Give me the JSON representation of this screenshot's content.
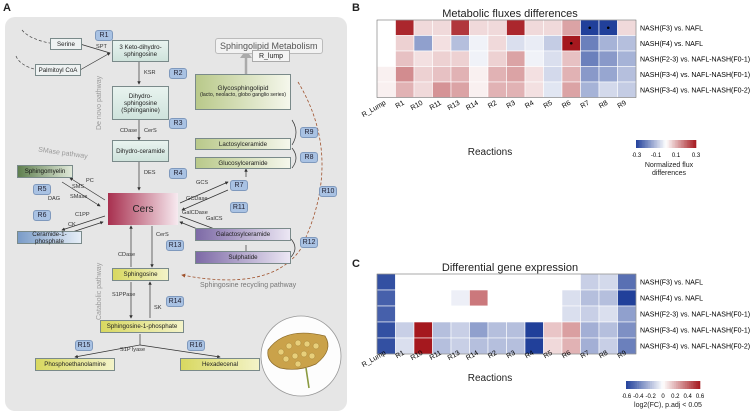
{
  "panel_a": {
    "letter": "A",
    "title": "Sphingolipid Metabolism",
    "pathways": {
      "de_novo": "De novo pathway",
      "smase": "SMase pathway",
      "catabolic": "Catabolic pathway",
      "recycling": "Sphingosine recycling pathway"
    },
    "nodes": {
      "serine": "Serine",
      "palmitoyl": "Palmitoyl CoA",
      "keto": "3 Keto-dihydro-sphingosine",
      "dihydrosph": "Dihydro-sphingosine (Sphinganine)",
      "dihydrocer": "Dihydro-ceramide",
      "sphingomyelin": "Sphingomyelin",
      "cer1p": "Ceramide-1-phosphate",
      "cers": "Cers",
      "sphingosine": "Sphingosine",
      "s1p": "Sphingosine-1-phosphate",
      "pea": "Phosphoethanolamine",
      "hexadecenal": "Hexadecenal",
      "glyco": "Glycosphingolipid",
      "glyco_sub": "(lacto, neolacto, globo ganglio series)",
      "lactosyl": "Lactosylceramide",
      "glucosyl": "Glucosylceramide",
      "galactosyl": "Galactosylceramide",
      "sulphatide": "Sulphatide",
      "r_lump": "R_lump"
    },
    "enzymes": {
      "spt": "SPT",
      "ksr": "KSR",
      "cers1": "CerS",
      "des": "DES",
      "sms": "SMS",
      "smase": "SMase",
      "pc": "PC",
      "dag": "DAG",
      "c1pp": "C1PP",
      "ck": "CK",
      "gcs": "GCS",
      "gcdase": "GCDase",
      "galcs": "GalCS",
      "galcdase": "GalCDase",
      "cdase1": "CDase",
      "cers2": "CerS",
      "cdase2": "CDase",
      "s1ppase": "S1PPase",
      "sk": "SK",
      "s1plyase": "S1P lyase"
    },
    "reactions": [
      "R1",
      "R2",
      "R3",
      "R4",
      "R5",
      "R6",
      "R7",
      "R8",
      "R9",
      "R10",
      "R11",
      "R12",
      "R13",
      "R14",
      "R15",
      "R16"
    ]
  },
  "panel_b": {
    "letter": "B",
    "title": "Metabolic fluxes differences",
    "xlabel": "Reactions",
    "legend_title": "Normalized flux differences",
    "legend_ticks": [
      "-0.3",
      "-0.1",
      "0.1",
      "0.3"
    ]
  },
  "panel_c": {
    "letter": "C",
    "title": "Differential gene expression",
    "xlabel": "Reactions",
    "legend_title": "log2(FC), p.adj < 0.05",
    "legend_ticks": [
      "-0.6",
      "-0.4",
      "-0.2",
      "0",
      "0.2",
      "0.4",
      "0.6"
    ]
  },
  "chart_data": [
    {
      "type": "heatmap",
      "title": "Metabolic fluxes differences",
      "xlabel": "Reactions",
      "columns": [
        "R_Lump",
        "R1",
        "R10",
        "R11",
        "R13",
        "R14",
        "R2",
        "R3",
        "R4",
        "R5",
        "R6",
        "R7",
        "R8",
        "R9"
      ],
      "rows": [
        "NASH(F3) vs. NAFL",
        "NASH(F4) vs. NAFL",
        "NASH(F2-3) vs. NAFL-NASH(F0-1)",
        "NASH(F3-4) vs. NAFL-NASH(F0-1)",
        "NASH(F3-4) vs. NAFL-NASH(F0-2)"
      ],
      "values": [
        [
          0.0,
          0.28,
          0.05,
          0.05,
          0.26,
          0.05,
          0.05,
          0.28,
          0.05,
          0.05,
          0.12,
          -0.33,
          -0.3,
          0.05
        ],
        [
          0.0,
          0.06,
          -0.15,
          0.04,
          -0.1,
          -0.02,
          0.05,
          -0.05,
          -0.03,
          -0.08,
          0.3,
          -0.2,
          -0.12,
          -0.1
        ],
        [
          0.0,
          0.08,
          0.04,
          0.06,
          0.06,
          -0.02,
          0.06,
          0.12,
          -0.02,
          -0.05,
          0.08,
          -0.2,
          -0.16,
          -0.12
        ],
        [
          0.02,
          0.15,
          0.06,
          0.08,
          0.1,
          0.02,
          0.1,
          0.12,
          0.04,
          -0.06,
          0.1,
          -0.16,
          -0.14,
          -0.1
        ],
        [
          0.02,
          0.1,
          0.05,
          0.14,
          0.12,
          0.02,
          0.1,
          0.1,
          0.04,
          -0.04,
          0.12,
          -0.12,
          -0.06,
          -0.08
        ]
      ],
      "scale": [
        -0.3,
        0.3
      ],
      "significance_marks": [
        [
          0,
          11
        ],
        [
          0,
          12
        ],
        [
          1,
          10
        ]
      ]
    },
    {
      "type": "heatmap",
      "title": "Differential gene expression",
      "xlabel": "Reactions",
      "columns": [
        "R_Lump",
        "R1",
        "R10",
        "R11",
        "R13",
        "R14",
        "R2",
        "R3",
        "R4",
        "R5",
        "R6",
        "R7",
        "R8",
        "R9"
      ],
      "rows": [
        "NASH(F3) vs. NAFL",
        "NASH(F4) vs. NAFL",
        "NASH(F2-3) vs. NAFL-NASH(F0-1)",
        "NASH(F3-4) vs. NAFL-NASH(F0-1)",
        "NASH(F3-4) vs. NAFL-NASH(F0-2)"
      ],
      "values": [
        [
          -0.55,
          0.0,
          0.0,
          0.0,
          0.0,
          0.0,
          0.0,
          0.0,
          0.0,
          0.0,
          0.0,
          -0.15,
          -0.12,
          -0.45
        ],
        [
          -0.5,
          0.0,
          0.0,
          0.0,
          -0.05,
          0.35,
          0.0,
          0.0,
          0.0,
          0.0,
          -0.1,
          -0.2,
          -0.2,
          -0.6
        ],
        [
          -0.5,
          0.0,
          0.0,
          0.0,
          0.0,
          0.0,
          0.0,
          0.0,
          0.0,
          0.0,
          -0.1,
          -0.15,
          -0.1,
          -0.3
        ],
        [
          -0.55,
          -0.15,
          0.65,
          -0.2,
          -0.15,
          -0.3,
          -0.2,
          -0.2,
          -0.6,
          0.15,
          0.25,
          -0.25,
          -0.2,
          -0.35
        ],
        [
          -0.55,
          -0.1,
          0.6,
          -0.2,
          -0.15,
          -0.2,
          -0.2,
          -0.2,
          -0.65,
          0.1,
          0.2,
          -0.25,
          -0.15,
          -0.4
        ]
      ],
      "scale": [
        -0.6,
        0.6
      ]
    }
  ]
}
